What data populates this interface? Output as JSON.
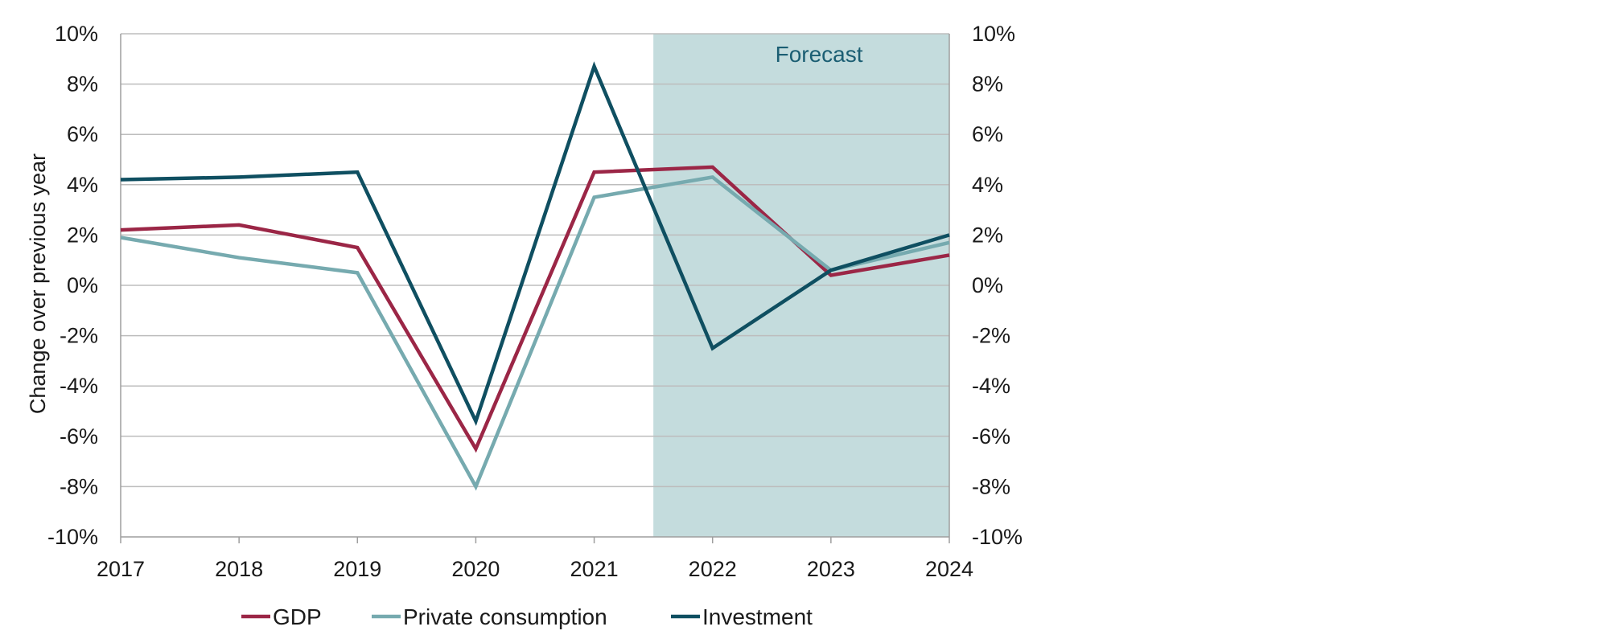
{
  "chart_data": {
    "type": "line",
    "x": [
      "2017",
      "2018",
      "2019",
      "2020",
      "2021",
      "2022",
      "2023",
      "2024"
    ],
    "ylabel": "Change over previous year",
    "ylim": [
      -10,
      10
    ],
    "yticks": [
      "10%",
      "8%",
      "6%",
      "4%",
      "2%",
      "0%",
      "-2%",
      "-4%",
      "-6%",
      "-8%",
      "-10%"
    ],
    "secondary_y_axis": true,
    "grid": true,
    "legend_position": "bottom",
    "forecast": {
      "label": "Forecast",
      "from": 2021.5,
      "to": 2024,
      "color": "#c4dcdd",
      "text_color": "#1b5e73"
    },
    "series": [
      {
        "name": "GDP",
        "color": "#9b2646",
        "values": [
          2.2,
          2.4,
          1.5,
          -6.5,
          4.5,
          4.7,
          0.4,
          1.2
        ]
      },
      {
        "name": "Private consumption",
        "color": "#76aaaf",
        "values": [
          1.9,
          1.1,
          0.5,
          -8.0,
          3.5,
          4.3,
          0.6,
          1.7
        ]
      },
      {
        "name": "Investment",
        "color": "#0f4f61",
        "values": [
          4.2,
          4.3,
          4.5,
          -5.4,
          8.7,
          -2.5,
          0.6,
          2.0
        ]
      }
    ]
  }
}
